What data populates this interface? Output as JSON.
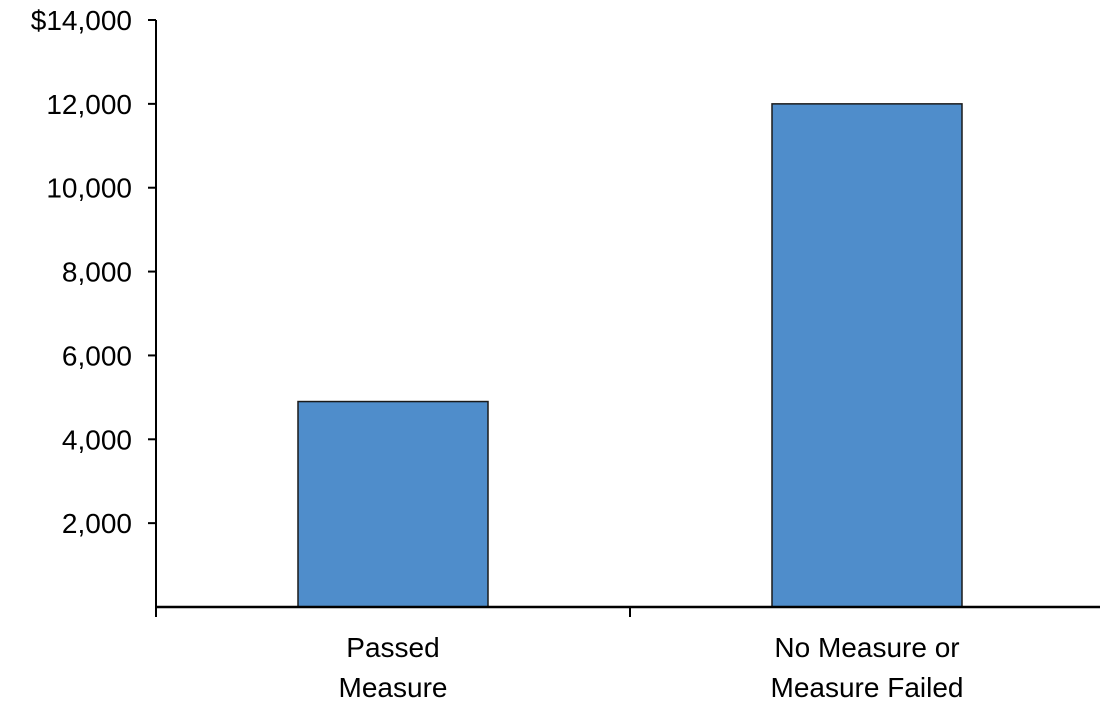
{
  "chart_data": {
    "type": "bar",
    "title": "",
    "xlabel": "",
    "ylabel": "",
    "categories": [
      [
        "Passed",
        "Measure"
      ],
      [
        "No Measure or",
        "Measure Failed"
      ]
    ],
    "values": [
      4900,
      12000
    ],
    "ylim": [
      0,
      14000
    ],
    "yticks": [
      2000,
      4000,
      6000,
      8000,
      10000,
      12000,
      14000
    ],
    "ytick_labels": [
      "2,000",
      "4,000",
      "6,000",
      "8,000",
      "10,000",
      "12,000",
      "$14,000"
    ],
    "grid": false,
    "legend": "none",
    "bar_color": "#4F8DCB",
    "bar_edge_color": "#1a1a1a",
    "axis_color": "#000000"
  }
}
